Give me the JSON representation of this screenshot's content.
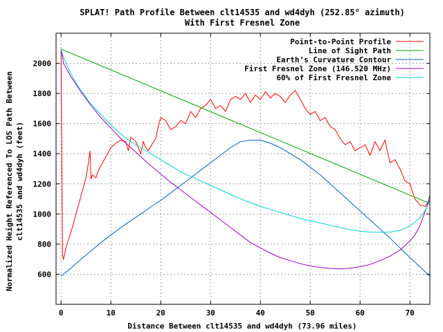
{
  "chart_data": {
    "type": "line",
    "title": "SPLAT! Path Profile Between clt14535 and wd4dyh (252.85° azimuth)",
    "subtitle": "With First Fresnel Zone",
    "xlabel": "Distance Between clt14535 and wd4dyh (73.96 miles)",
    "ylabel_line1": "Normalized Height Referenced To LOS Path Between",
    "ylabel_line2": "clt14535 and wd4dyh (feet)",
    "xlim": [
      -1,
      74
    ],
    "ylim": [
      400,
      2200
    ],
    "x_ticks": [
      0,
      10,
      20,
      30,
      40,
      50,
      60,
      70
    ],
    "y_ticks": [
      600,
      800,
      1000,
      1200,
      1400,
      1600,
      1800,
      2000
    ],
    "x_tick_labels": [
      "0",
      "10",
      "20",
      "30",
      "40",
      "50",
      "60",
      "70"
    ],
    "y_tick_labels": [
      "600",
      "800",
      "1000",
      "1200",
      "1400",
      "1600",
      "1800",
      "2000"
    ],
    "grid": true,
    "legend_position": "top-right",
    "series": [
      {
        "name": "Point-to-Point Profile",
        "color": "#ff0000",
        "x": [
          0,
          0.3,
          0.5,
          1,
          1.5,
          2,
          2.5,
          3,
          3.5,
          4,
          4.5,
          5,
          5.5,
          5.8,
          6,
          6.3,
          7,
          7.5,
          8,
          9,
          10,
          11,
          12,
          13,
          13.5,
          14,
          15,
          16,
          16.5,
          17,
          17.5,
          18,
          19,
          19.5,
          20,
          21,
          22,
          23,
          24,
          25,
          26,
          27,
          28,
          29,
          30,
          31,
          32,
          33,
          34,
          35,
          36,
          37,
          38,
          39,
          40,
          41,
          42,
          43,
          44,
          45,
          46,
          47,
          48,
          49,
          50,
          51,
          52,
          53,
          54,
          55,
          56,
          57,
          58,
          59,
          60,
          61,
          62,
          63,
          64,
          65,
          66,
          67,
          68,
          69,
          70,
          71,
          72,
          73,
          73.96
        ],
        "y": [
          2090,
          720,
          700,
          780,
          830,
          880,
          940,
          1000,
          1060,
          1120,
          1180,
          1240,
          1340,
          1420,
          1230,
          1260,
          1240,
          1290,
          1320,
          1380,
          1440,
          1470,
          1490,
          1480,
          1420,
          1510,
          1480,
          1400,
          1480,
          1440,
          1420,
          1450,
          1500,
          1580,
          1640,
          1620,
          1560,
          1580,
          1620,
          1600,
          1680,
          1640,
          1700,
          1720,
          1760,
          1700,
          1720,
          1680,
          1760,
          1780,
          1760,
          1800,
          1740,
          1790,
          1760,
          1810,
          1770,
          1800,
          1780,
          1740,
          1790,
          1820,
          1760,
          1700,
          1660,
          1680,
          1620,
          1640,
          1580,
          1560,
          1500,
          1460,
          1480,
          1420,
          1440,
          1460,
          1390,
          1480,
          1420,
          1490,
          1340,
          1360,
          1300,
          1220,
          1200,
          1100,
          1060,
          1050,
          1090
        ]
      },
      {
        "name": "Line of Sight Path",
        "color": "#00a000",
        "x": [
          0,
          73.96
        ],
        "y": [
          2095,
          1070
        ]
      },
      {
        "name": "Earth’s Curvature Contour",
        "color": "#0060c0",
        "x": [
          0,
          2,
          4,
          6,
          8,
          10,
          12,
          14,
          16,
          18,
          20,
          22,
          24,
          26,
          28,
          30,
          32,
          34,
          36,
          38,
          40,
          42,
          44,
          46,
          48,
          50,
          52,
          54,
          56,
          58,
          60,
          62,
          64,
          66,
          68,
          70,
          72,
          73.96
        ],
        "y": [
          588,
          640,
          700,
          755,
          810,
          860,
          910,
          955,
          1000,
          1045,
          1090,
          1140,
          1190,
          1240,
          1290,
          1340,
          1390,
          1440,
          1480,
          1490,
          1490,
          1470,
          1440,
          1400,
          1360,
          1310,
          1260,
          1200,
          1140,
          1080,
          1020,
          960,
          900,
          840,
          775,
          710,
          650,
          588
        ]
      },
      {
        "name": "First Fresnel Zone (146.520 MHz)",
        "color": "#a000c0",
        "x": [
          0,
          0.5,
          1,
          2,
          3,
          4,
          6,
          8,
          10,
          12,
          14,
          16,
          18,
          20,
          22,
          24,
          26,
          28,
          30,
          32,
          34,
          36,
          38,
          40,
          42,
          44,
          46,
          48,
          50,
          52,
          54,
          56,
          58,
          60,
          62,
          64,
          66,
          68,
          70,
          71,
          72,
          73,
          73.5,
          73.96
        ],
        "y": [
          2095,
          2000,
          1970,
          1910,
          1860,
          1810,
          1720,
          1640,
          1570,
          1500,
          1440,
          1380,
          1320,
          1265,
          1210,
          1160,
          1110,
          1060,
          1010,
          960,
          910,
          860,
          810,
          775,
          740,
          710,
          690,
          670,
          655,
          645,
          638,
          635,
          640,
          650,
          665,
          690,
          720,
          760,
          820,
          860,
          920,
          1010,
          1060,
          1120
        ]
      },
      {
        "name": "60% of First Fresnel Zone",
        "color": "#00d0d0",
        "x": [
          0,
          0.5,
          1,
          2,
          3,
          4,
          6,
          8,
          10,
          12,
          14,
          16,
          18,
          20,
          22,
          24,
          26,
          28,
          30,
          32,
          34,
          36,
          38,
          40,
          42,
          44,
          46,
          48,
          50,
          52,
          54,
          56,
          58,
          60,
          62,
          64,
          66,
          68,
          70,
          71,
          72,
          73,
          73.5,
          73.96
        ],
        "y": [
          2095,
          2040,
          2000,
          1930,
          1870,
          1820,
          1730,
          1660,
          1590,
          1530,
          1480,
          1440,
          1400,
          1360,
          1320,
          1280,
          1250,
          1220,
          1190,
          1160,
          1130,
          1100,
          1075,
          1050,
          1030,
          1010,
          990,
          970,
          955,
          940,
          925,
          910,
          895,
          885,
          880,
          878,
          880,
          890,
          920,
          945,
          975,
          1020,
          1050,
          1090
        ]
      }
    ]
  }
}
